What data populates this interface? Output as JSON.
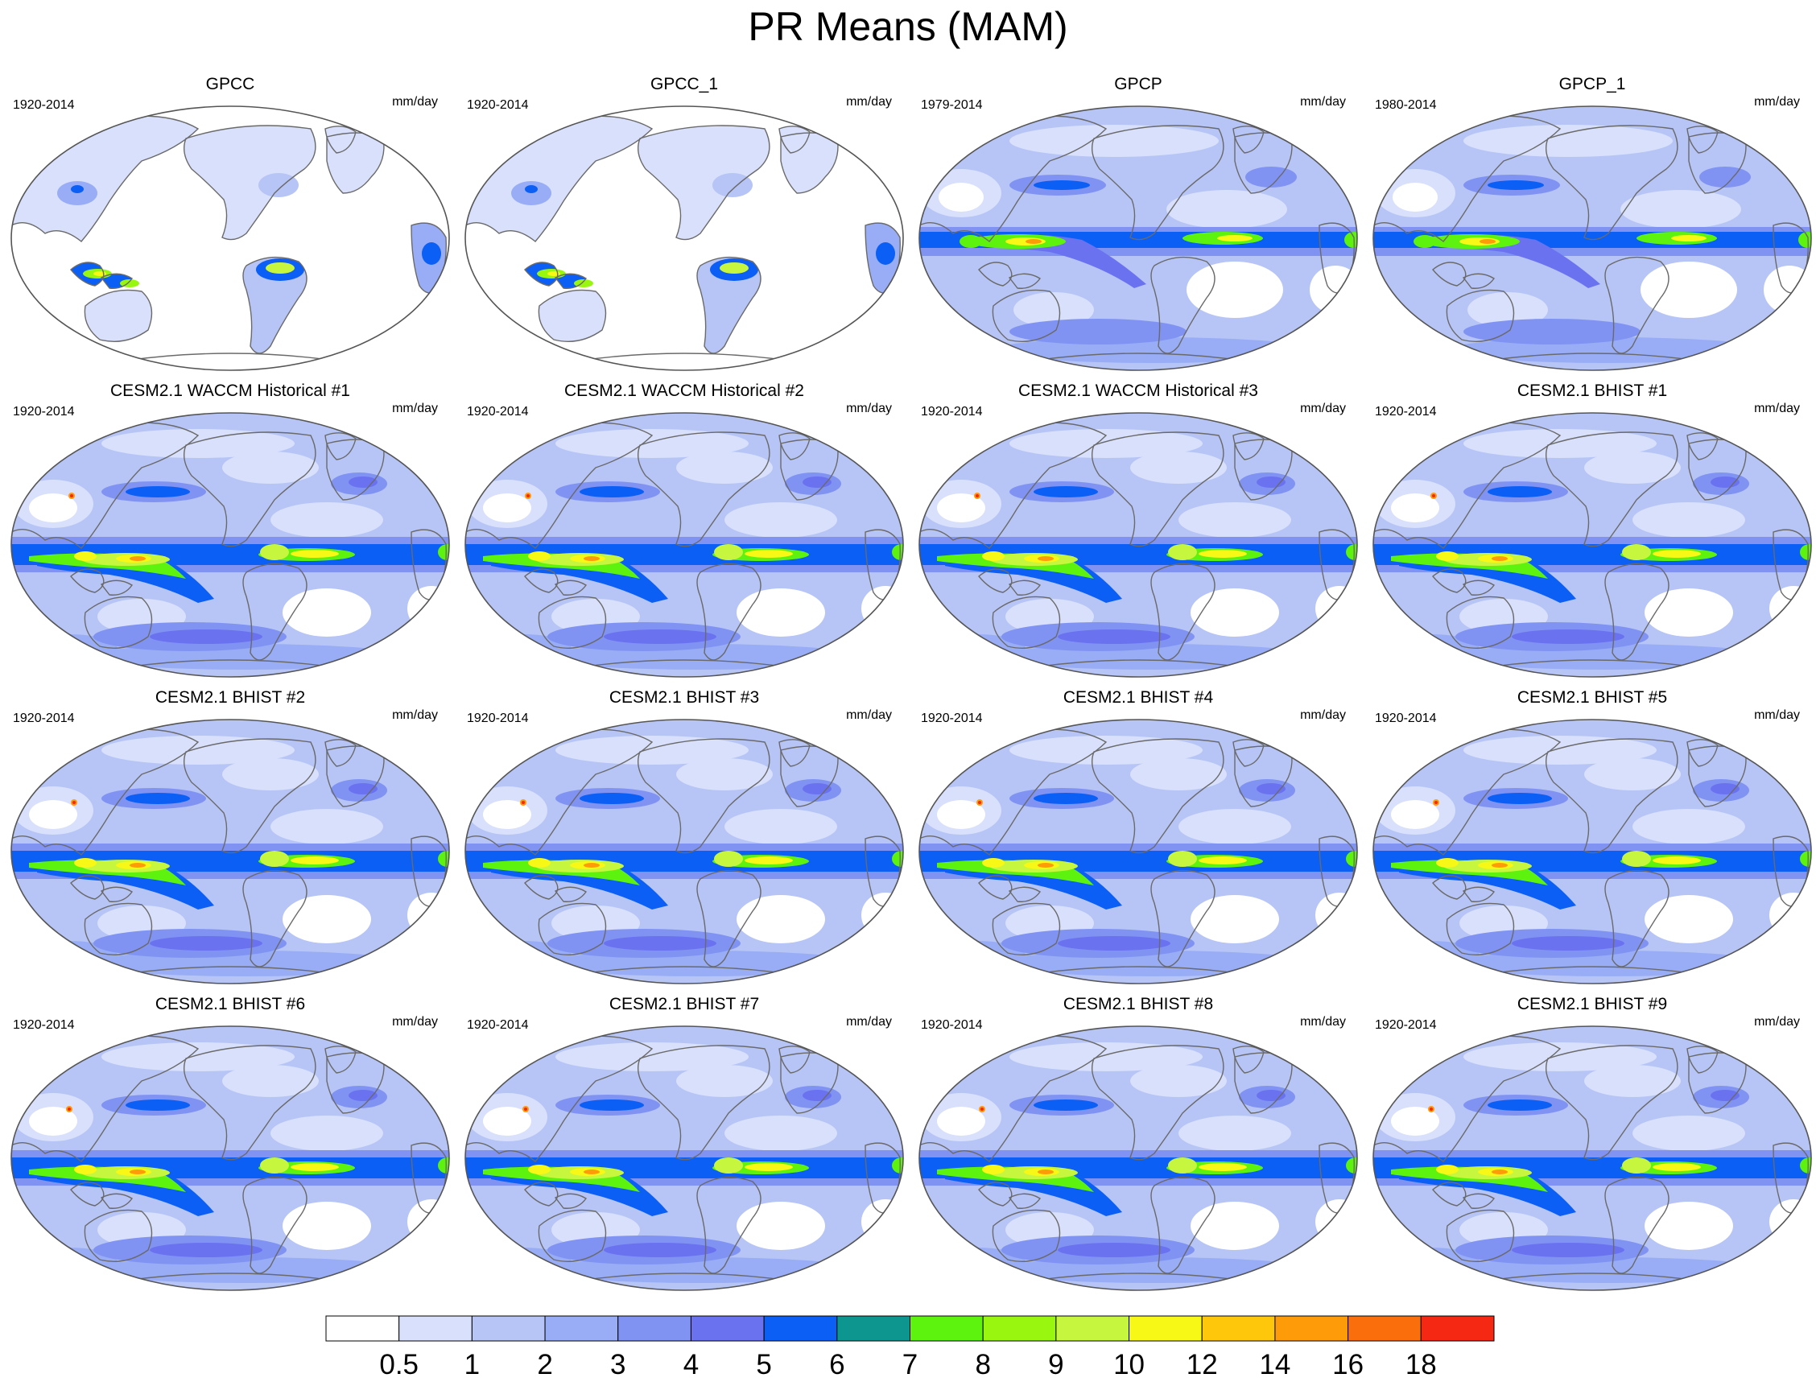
{
  "title": "PR Means (MAM)",
  "units": "mm/day",
  "colors": {
    "outline": "#555555",
    "coast": "#6a6a6a"
  },
  "panels": [
    {
      "title": "GPCC",
      "period": "1920-2014",
      "style": "land"
    },
    {
      "title": "GPCC_1",
      "period": "1920-2014",
      "style": "land"
    },
    {
      "title": "GPCP",
      "period": "1979-2014",
      "style": "obs"
    },
    {
      "title": "GPCP_1",
      "period": "1980-2014",
      "style": "obs"
    },
    {
      "title": "CESM2.1 WACCM Historical #1",
      "period": "1920-2014",
      "style": "model"
    },
    {
      "title": "CESM2.1 WACCM Historical #2",
      "period": "1920-2014",
      "style": "model"
    },
    {
      "title": "CESM2.1 WACCM Historical #3",
      "period": "1920-2014",
      "style": "model"
    },
    {
      "title": "CESM2.1 BHIST #1",
      "period": "1920-2014",
      "style": "model"
    },
    {
      "title": "CESM2.1 BHIST #2",
      "period": "1920-2014",
      "style": "model"
    },
    {
      "title": "CESM2.1 BHIST #3",
      "period": "1920-2014",
      "style": "model"
    },
    {
      "title": "CESM2.1 BHIST #4",
      "period": "1920-2014",
      "style": "model"
    },
    {
      "title": "CESM2.1 BHIST #5",
      "period": "1920-2014",
      "style": "model"
    },
    {
      "title": "CESM2.1 BHIST #6",
      "period": "1920-2014",
      "style": "model"
    },
    {
      "title": "CESM2.1 BHIST #7",
      "period": "1920-2014",
      "style": "model"
    },
    {
      "title": "CESM2.1 BHIST #8",
      "period": "1920-2014",
      "style": "model"
    },
    {
      "title": "CESM2.1 BHIST #9",
      "period": "1920-2014",
      "style": "model"
    }
  ],
  "colorbar": {
    "labels": [
      "0.5",
      "1",
      "2",
      "3",
      "4",
      "5",
      "6",
      "7",
      "8",
      "9",
      "10",
      "12",
      "14",
      "16",
      "18"
    ],
    "colors": [
      "#ffffff",
      "#d8e0fb",
      "#b7c5f6",
      "#98adf5",
      "#8093f3",
      "#6a72f0",
      "#0b5ff5",
      "#0d958f",
      "#5ef20f",
      "#99f60e",
      "#c7f63f",
      "#f8f816",
      "#ffc70c",
      "#fe9b08",
      "#fa6f0c",
      "#f42813"
    ]
  }
}
